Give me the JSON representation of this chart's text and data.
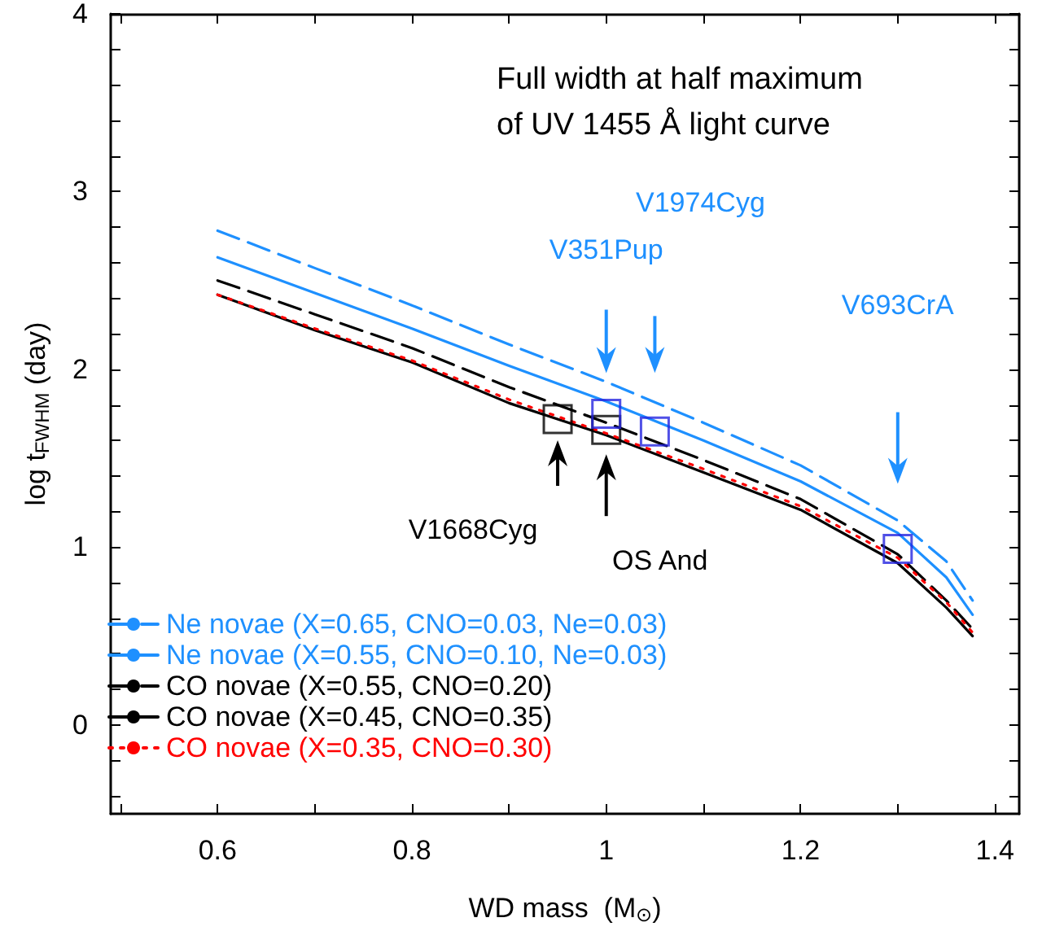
{
  "chart_data": {
    "type": "line",
    "title": "Full width at half maximum\nof UV 1455 Å light curve",
    "xlabel": "WD mass  (M$_{⊙}$)",
    "ylabel": "log t$_{FWHM}$ (day)",
    "x": [
      0.6,
      0.7,
      0.8,
      0.9,
      1.0,
      1.1,
      1.2,
      1.3,
      1.35,
      1.377
    ],
    "series": [
      {
        "name": "Ne novae (X=0.65, CNO=0.03, Ne=0.03)",
        "color": "#1e90ff",
        "line_style": "dashed",
        "values": [
          2.78,
          2.57,
          2.36,
          2.14,
          1.93,
          1.7,
          1.46,
          1.15,
          0.92,
          0.7
        ]
      },
      {
        "name": "Ne novae (X=0.55, CNO=0.10, Ne=0.03)",
        "color": "#1e90ff",
        "line_style": "solid",
        "values": [
          2.63,
          2.43,
          2.23,
          2.02,
          1.82,
          1.6,
          1.37,
          1.08,
          0.83,
          0.62
        ]
      },
      {
        "name": "CO novae (X=0.55, CNO=0.20)",
        "color": "#000000",
        "line_style": "dashed",
        "values": [
          2.5,
          2.31,
          2.12,
          1.9,
          1.7,
          1.49,
          1.27,
          0.96,
          0.7,
          0.54
        ]
      },
      {
        "name": "CO novae (X=0.45, CNO=0.35)",
        "color": "#000000",
        "line_style": "solid",
        "values": [
          2.42,
          2.22,
          2.04,
          1.81,
          1.63,
          1.42,
          1.21,
          0.91,
          0.66,
          0.5
        ]
      },
      {
        "name": "CO novae (X=0.35, CNO=0.30)",
        "color": "#ff0000",
        "line_style": "dotted",
        "values": [
          2.42,
          2.23,
          2.05,
          1.83,
          1.64,
          1.44,
          1.23,
          0.94,
          0.69,
          0.52
        ]
      },
      {
        "type": "scatter",
        "marker": "square",
        "color": "#000000",
        "x": [
          0.95,
          1.0
        ],
        "values": [
          1.72,
          1.66
        ]
      },
      {
        "type": "scatter",
        "marker": "square",
        "color": "#2424e0",
        "x": [
          1.0,
          1.05,
          1.3
        ],
        "values": [
          1.75,
          1.65,
          0.99
        ]
      }
    ],
    "annotations": [
      "V1668Cyg",
      "OS And",
      "V351Pup",
      "V1974Cyg",
      "V693CrA"
    ],
    "xlim": [
      0.49,
      1.425
    ],
    "xticks": [
      {
        "value": 0.5,
        "label": null
      },
      0.6,
      {
        "value": 0.7,
        "label": null
      },
      0.8,
      {
        "value": 0.9,
        "label": null
      },
      1,
      {
        "value": 1.1,
        "label": null
      },
      1.2,
      {
        "value": 1.3,
        "label": null
      },
      1.4
    ],
    "ylim": [
      -0.5,
      4
    ],
    "yticks": [
      {
        "value": -0.4,
        "label": null
      },
      {
        "value": -0.2,
        "label": null
      },
      0,
      {
        "value": 0.2,
        "label": null
      },
      {
        "value": 0.4,
        "label": null
      },
      {
        "value": 0.6,
        "label": null
      },
      {
        "value": 0.8,
        "label": null
      },
      1,
      {
        "value": 1.2,
        "label": null
      },
      {
        "value": 1.4,
        "label": null
      },
      {
        "value": 1.6,
        "label": null
      },
      {
        "value": 1.8,
        "label": null
      },
      2,
      {
        "value": 2.2,
        "label": null
      },
      {
        "value": 2.4,
        "label": null
      },
      {
        "value": 2.6,
        "label": null
      },
      {
        "value": 2.8,
        "label": null
      },
      3,
      {
        "value": 3.2,
        "label": null
      },
      {
        "value": 3.4,
        "label": null
      },
      {
        "value": 3.6,
        "label": null
      },
      {
        "value": 3.8,
        "label": null
      },
      4
    ],
    "grid": false,
    "legend": "bottom left",
    "marker": "none"
  }
}
